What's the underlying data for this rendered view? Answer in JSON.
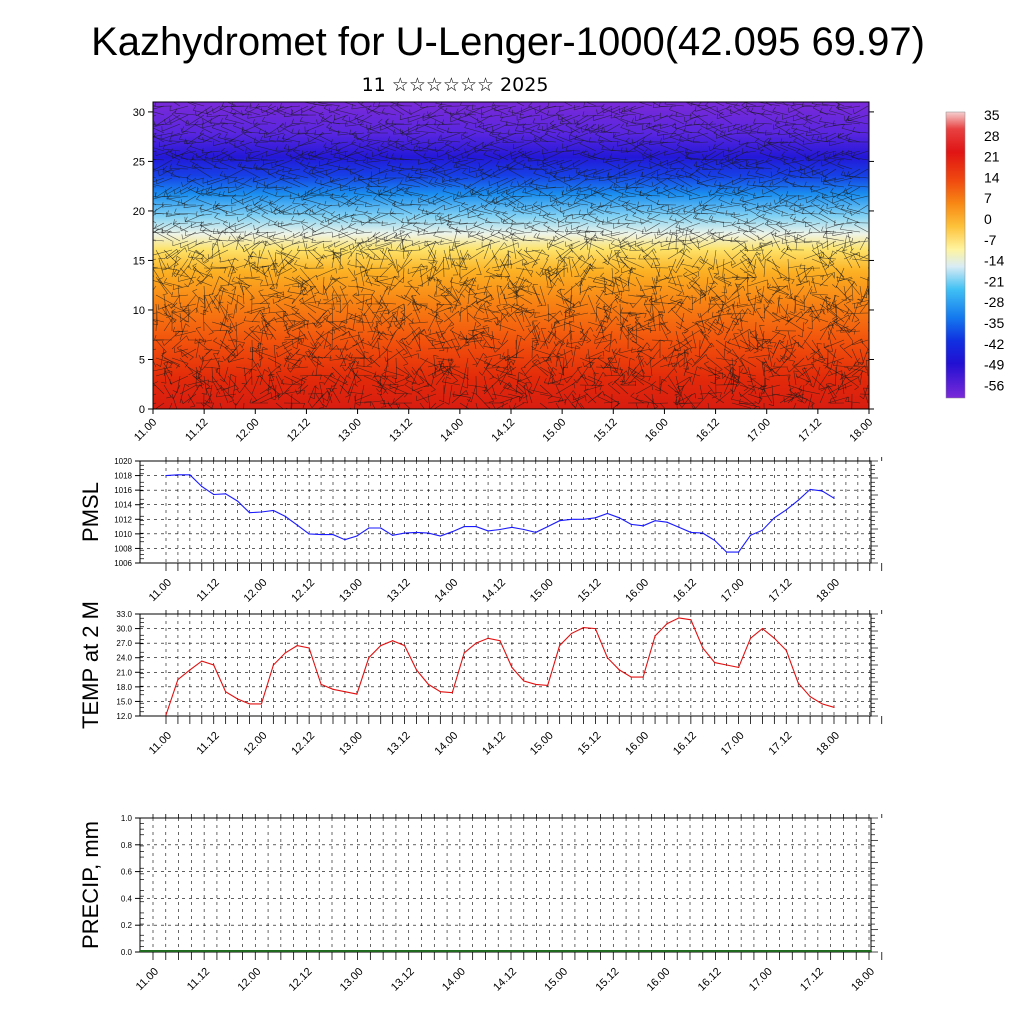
{
  "title": "Kazhydromet for U-Lenger-1000(42.095 69.97)",
  "subtitle": "11 ☆☆☆☆☆☆ 2025",
  "time_labels": [
    "11.00",
    "11.12",
    "12.00",
    "12.12",
    "13.00",
    "13.12",
    "14.00",
    "14.12",
    "15.00",
    "15.12",
    "16.00",
    "16.12",
    "17.00",
    "17.12",
    "18.00"
  ],
  "chart_data": [
    {
      "type": "heatmap",
      "name": "temperature_cross_section",
      "ylim": [
        0,
        31
      ],
      "yticks": [
        0,
        5,
        10,
        15,
        20,
        25,
        30
      ],
      "x": [
        "11.00",
        "11.12",
        "12.00",
        "12.12",
        "13.00",
        "13.12",
        "14.00",
        "14.12",
        "15.00",
        "15.12",
        "16.00",
        "16.12",
        "17.00",
        "17.12",
        "18.00"
      ],
      "colorbar_labels": [
        "35",
        "28",
        "21",
        "14",
        "7",
        "0",
        "-7",
        "-14",
        "-21",
        "-28",
        "-35",
        "-42",
        "-49",
        "-56"
      ],
      "colorbar_colors": [
        "#f4b8b8",
        "#e01818",
        "#f04010",
        "#f87010",
        "#fca820",
        "#fde050",
        "#fff8c0",
        "#c8e8f8",
        "#40b8f0",
        "#1878f0",
        "#1030e0",
        "#2010d0",
        "#5020e0",
        "#8030e0"
      ],
      "overlay": "wind barbs",
      "legend_position": "right"
    },
    {
      "type": "line",
      "ylabel": "PMSL",
      "ylim": [
        1006,
        1020
      ],
      "yticks": [
        "1006",
        "1008",
        "1010",
        "1012",
        "1014",
        "1016",
        "1018",
        "1020"
      ],
      "x": [
        "11.00",
        "11.03",
        "11.06",
        "11.09",
        "11.12",
        "11.15",
        "11.18",
        "11.21",
        "12.00",
        "12.03",
        "12.06",
        "12.09",
        "12.12",
        "12.15",
        "12.18",
        "12.21",
        "13.00",
        "13.03",
        "13.06",
        "13.09",
        "13.12",
        "13.15",
        "13.18",
        "13.21",
        "14.00",
        "14.03",
        "14.06",
        "14.09",
        "14.12",
        "14.15",
        "14.18",
        "14.21",
        "15.00",
        "15.03",
        "15.06",
        "15.09",
        "15.12",
        "15.15",
        "15.18",
        "15.21",
        "16.00",
        "16.03",
        "16.06",
        "16.09",
        "16.12",
        "16.15",
        "16.18",
        "16.21",
        "17.00",
        "17.03",
        "17.06",
        "17.09",
        "17.12",
        "17.15",
        "17.18",
        "17.21",
        "18.00"
      ],
      "series": [
        {
          "color": "#1a1aff",
          "values": [
            1018,
            1018.1,
            1018.1,
            1016.5,
            1015.4,
            1015.5,
            1014.5,
            1012.9,
            1013,
            1013.2,
            1012.4,
            1011.2,
            1010,
            1009.9,
            1009.9,
            1009.2,
            1009.7,
            1010.8,
            1010.8,
            1009.8,
            1010.1,
            1010.2,
            1010.1,
            1009.7,
            1010.3,
            1011,
            1011,
            1010.4,
            1010.6,
            1010.9,
            1010.6,
            1010.2,
            1011,
            1011.8,
            1012,
            1012,
            1012.2,
            1012.8,
            1012.2,
            1011.3,
            1011.1,
            1011.8,
            1011.6,
            1010.9,
            1010.2,
            1010.1,
            1009.1,
            1007.5,
            1007.5,
            1009.8,
            1010.5,
            1012.2,
            1013.3,
            1014.6,
            1016.1,
            1015.9,
            1014.9
          ]
        }
      ]
    },
    {
      "type": "line",
      "ylabel": "TEMP at 2 M",
      "ylim": [
        12,
        33
      ],
      "yticks": [
        "12.0",
        "15.0",
        "18.0",
        "21.0",
        "24.0",
        "27.0",
        "30.0",
        "33.0"
      ],
      "x": [
        "11.00",
        "11.03",
        "11.06",
        "11.09",
        "11.12",
        "11.15",
        "11.18",
        "11.21",
        "12.00",
        "12.03",
        "12.06",
        "12.09",
        "12.12",
        "12.15",
        "12.18",
        "12.21",
        "13.00",
        "13.03",
        "13.06",
        "13.09",
        "13.12",
        "13.15",
        "13.18",
        "13.21",
        "14.00",
        "14.03",
        "14.06",
        "14.09",
        "14.12",
        "14.15",
        "14.18",
        "14.21",
        "15.00",
        "15.03",
        "15.06",
        "15.09",
        "15.12",
        "15.15",
        "15.18",
        "15.21",
        "16.00",
        "16.03",
        "16.06",
        "16.09",
        "16.12",
        "16.15",
        "16.18",
        "16.21",
        "17.00",
        "17.03",
        "17.06",
        "17.09",
        "17.12",
        "17.15",
        "17.18",
        "17.21",
        "18.00"
      ],
      "series": [
        {
          "color": "#e01010",
          "values": [
            12.2,
            19.5,
            21.5,
            23.3,
            22.5,
            17,
            15.5,
            14.5,
            14.5,
            22.5,
            25,
            26.5,
            26,
            18.5,
            17.5,
            17,
            16.5,
            24,
            26.5,
            27.5,
            26.5,
            21.5,
            18.5,
            17,
            16.8,
            25,
            27,
            28,
            27.5,
            22,
            19.2,
            18.5,
            18.3,
            26.5,
            29,
            30.2,
            30,
            24,
            21.5,
            20,
            20,
            28.5,
            31,
            32.2,
            31.8,
            26,
            23,
            22.5,
            22,
            28,
            30,
            28,
            25.5,
            18.8,
            16,
            14.5,
            13.8
          ]
        }
      ]
    },
    {
      "type": "bar",
      "ylabel": "PRECIP, mm",
      "ylim": [
        0,
        1
      ],
      "yticks": [
        "0.0",
        "0.2",
        "0.4",
        "0.6",
        "0.8",
        "1.0"
      ],
      "x": [
        "11.00",
        "11.12",
        "12.00",
        "12.12",
        "13.00",
        "13.12",
        "14.00",
        "14.12",
        "15.00",
        "15.12",
        "16.00",
        "16.12",
        "17.00",
        "17.12",
        "18.00"
      ],
      "values": [
        0,
        0,
        0,
        0,
        0,
        0,
        0,
        0,
        0,
        0,
        0,
        0,
        0,
        0,
        0
      ]
    }
  ]
}
